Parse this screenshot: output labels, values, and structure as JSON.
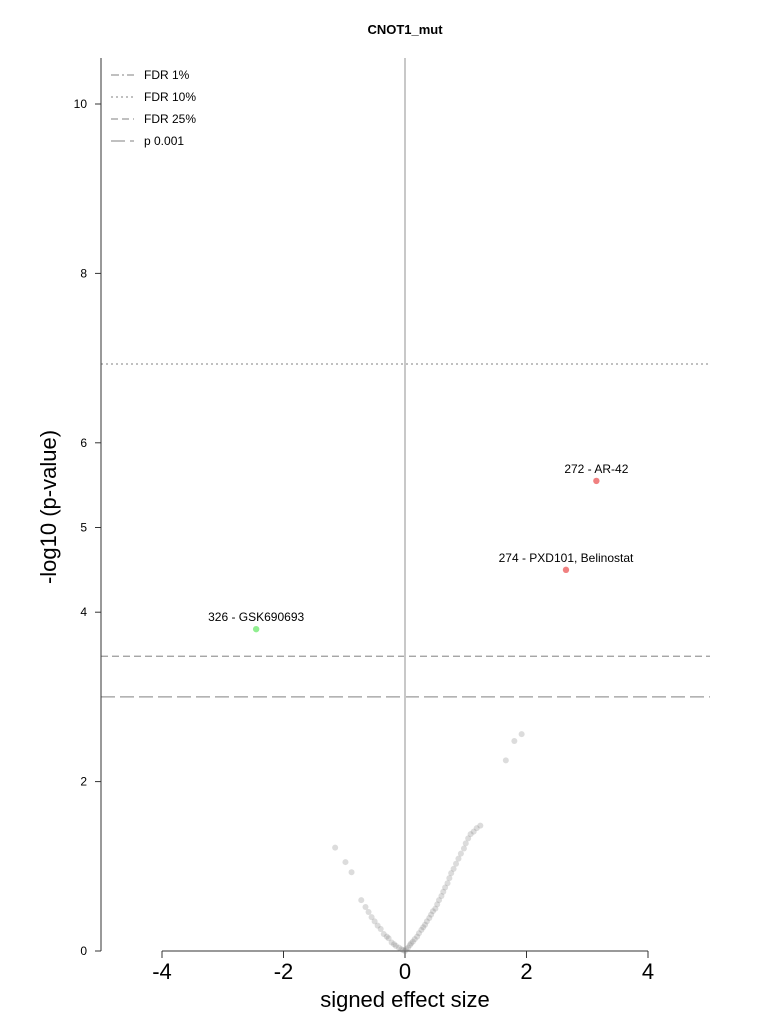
{
  "chart_data": {
    "type": "scatter",
    "title": "CNOT1_mut",
    "xlabel": "signed effect size",
    "ylabel": "-log10 (p-value)",
    "xlim": [
      -5,
      5
    ],
    "ylim": [
      0,
      10.5
    ],
    "x_axis_range": [
      -4,
      4
    ],
    "x_ticks": [
      -4,
      -2,
      0,
      2,
      4
    ],
    "y_ticks": [
      0,
      2,
      4,
      5,
      6,
      8,
      10
    ],
    "legend_position": "top-left",
    "reference_lines": [
      {
        "name": "FDR 1%",
        "style": "dashdot",
        "y": null
      },
      {
        "name": "FDR 10%",
        "style": "dotted",
        "y": 6.93
      },
      {
        "name": "FDR 25%",
        "style": "dashed",
        "y": 3.48
      },
      {
        "name": "p 0.001",
        "style": "longdash",
        "y": 3.0
      }
    ],
    "highlighted": [
      {
        "label": "272 - AR-42",
        "x": 3.15,
        "y": 5.55,
        "color": "#f08080"
      },
      {
        "label": "274 - PXD101, Belinostat",
        "x": 2.65,
        "y": 4.5,
        "color": "#f08080"
      },
      {
        "label": "326 - GSK690693",
        "x": -2.45,
        "y": 3.8,
        "color": "#90ee90"
      }
    ],
    "background_points": {
      "color": "#808080",
      "x": [
        -1.15,
        -0.98,
        -0.88,
        -0.72,
        -0.65,
        -0.6,
        -0.55,
        -0.5,
        -0.45,
        -0.4,
        -0.35,
        -0.3,
        -0.27,
        -0.22,
        -0.18,
        -0.15,
        -0.1,
        -0.06,
        -0.03,
        0.0,
        0.02,
        0.05,
        0.08,
        0.1,
        0.13,
        0.16,
        0.2,
        0.23,
        0.27,
        0.3,
        0.33,
        0.36,
        0.4,
        0.43,
        0.46,
        0.5,
        0.53,
        0.56,
        0.6,
        0.63,
        0.66,
        0.7,
        0.73,
        0.76,
        0.8,
        0.84,
        0.88,
        0.92,
        0.97,
        1.0,
        1.04,
        1.08,
        1.13,
        1.18,
        1.24,
        1.66,
        1.8,
        1.92
      ],
      "y": [
        1.22,
        1.05,
        0.93,
        0.6,
        0.52,
        0.46,
        0.4,
        0.35,
        0.3,
        0.26,
        0.2,
        0.17,
        0.15,
        0.1,
        0.08,
        0.06,
        0.04,
        0.02,
        0.01,
        0.0,
        0.02,
        0.04,
        0.07,
        0.09,
        0.11,
        0.14,
        0.17,
        0.21,
        0.25,
        0.28,
        0.31,
        0.35,
        0.39,
        0.43,
        0.47,
        0.5,
        0.55,
        0.6,
        0.65,
        0.7,
        0.75,
        0.8,
        0.86,
        0.92,
        0.97,
        1.03,
        1.09,
        1.15,
        1.21,
        1.27,
        1.33,
        1.38,
        1.41,
        1.45,
        1.48,
        2.25,
        2.48,
        2.56
      ]
    }
  }
}
